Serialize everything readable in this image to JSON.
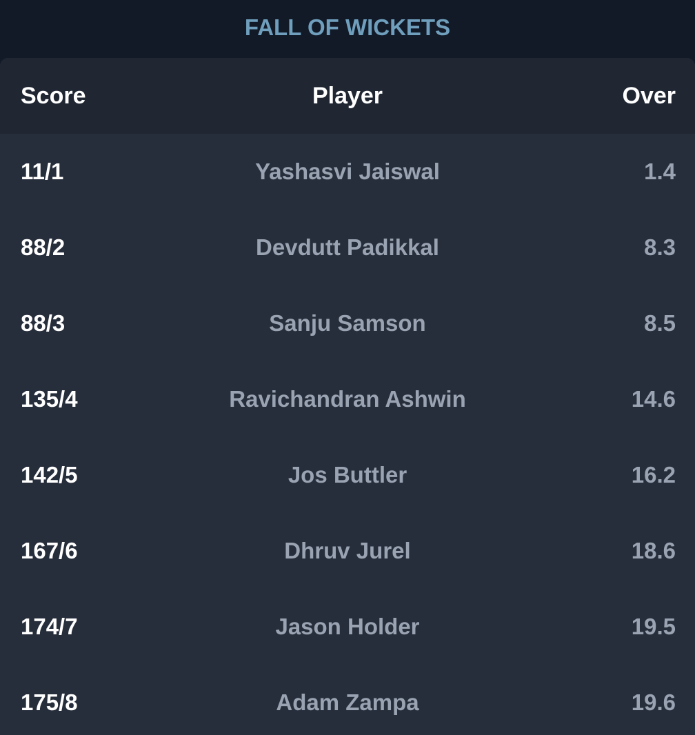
{
  "title": "FALL OF WICKETS",
  "headers": {
    "score": "Score",
    "player": "Player",
    "over": "Over"
  },
  "rows": [
    {
      "score": "11/1",
      "player": "Yashasvi Jaiswal",
      "over": "1.4"
    },
    {
      "score": "88/2",
      "player": "Devdutt Padikkal",
      "over": "8.3"
    },
    {
      "score": "88/3",
      "player": "Sanju Samson",
      "over": "8.5"
    },
    {
      "score": "135/4",
      "player": "Ravichandran Ashwin",
      "over": "14.6"
    },
    {
      "score": "142/5",
      "player": "Jos Buttler",
      "over": "16.2"
    },
    {
      "score": "167/6",
      "player": "Dhruv Jurel",
      "over": "18.6"
    },
    {
      "score": "174/7",
      "player": "Jason Holder",
      "over": "19.5"
    },
    {
      "score": "175/8",
      "player": "Adam Zampa",
      "over": "19.6"
    }
  ],
  "colors": {
    "title": "#6f9fbd",
    "background": "#121a28",
    "table_bg": "#272e3b",
    "header_bg": "#202733",
    "muted_text": "#99a3b2"
  }
}
